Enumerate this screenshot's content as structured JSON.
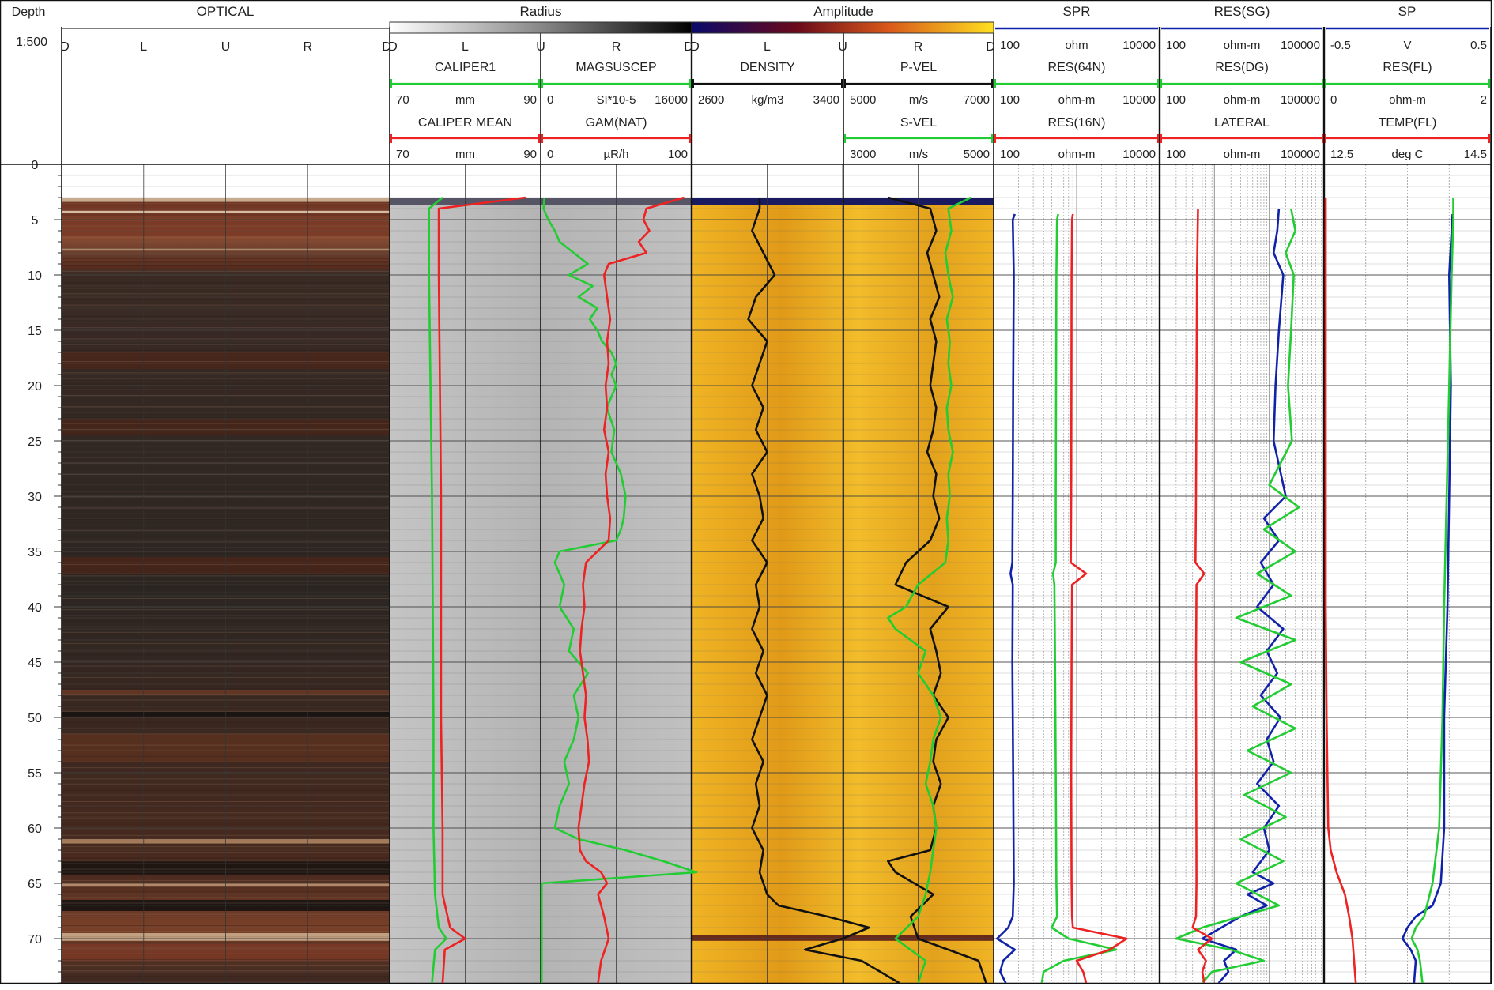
{
  "chart_data": {
    "type": "line",
    "scale_label": "1:500",
    "depth": {
      "label": "Depth",
      "range": [
        0,
        74
      ],
      "ticks": [
        "0",
        "5",
        "10",
        "15",
        "20",
        "25",
        "30",
        "35",
        "40",
        "45",
        "50",
        "55",
        "60",
        "65",
        "70"
      ]
    },
    "header": {
      "group_titles": [
        "OPTICAL",
        "Radius",
        "Amplitude",
        "SPR",
        "RES(SG)",
        "SP"
      ],
      "optical_orientation": [
        "D",
        "L",
        "U",
        "R",
        "D"
      ],
      "acoustic_orientation_radius": [
        "D",
        "L",
        "U",
        "R",
        "D"
      ],
      "acoustic_orientation_amplitude": [
        "D",
        "L",
        "U",
        "R",
        "D"
      ],
      "scales": [
        {
          "name": "SPR",
          "min": "100",
          "unit": "ohm",
          "max": "10000"
        },
        {
          "name": "RES(SG)",
          "min": "100",
          "unit": "ohm-m",
          "max": "100000"
        },
        {
          "name": "SP",
          "min": "-0.5",
          "unit": "V",
          "max": "0.5"
        },
        {
          "name": "CALIPER1",
          "min": "70",
          "unit": "mm",
          "max": "90"
        },
        {
          "name": "MAGSUSCEP",
          "min": "0",
          "unit": "SI*10-5",
          "max": "16000"
        },
        {
          "name": "DENSITY",
          "min": "2600",
          "unit": "kg/m3",
          "max": "3400"
        },
        {
          "name": "P-VEL",
          "min": "5000",
          "unit": "m/s",
          "max": "7000"
        },
        {
          "name": "RES(64N)",
          "min": "100",
          "unit": "ohm-m",
          "max": "10000"
        },
        {
          "name": "RES(DG)",
          "min": "100",
          "unit": "ohm-m",
          "max": "100000"
        },
        {
          "name": "RES(FL)",
          "min": "0",
          "unit": "ohm-m",
          "max": "2"
        },
        {
          "name": "CALIPER MEAN",
          "min": "70",
          "unit": "mm",
          "max": "90"
        },
        {
          "name": "GAM(NAT)",
          "min": "0",
          "unit": "µR/h",
          "max": "100"
        },
        {
          "name": "S-VEL",
          "min": "3000",
          "unit": "m/s",
          "max": "5000"
        },
        {
          "name": "RES(16N)",
          "min": "100",
          "unit": "ohm-m",
          "max": "10000"
        },
        {
          "name": "LATERAL",
          "min": "100",
          "unit": "ohm-m",
          "max": "100000"
        },
        {
          "name": "TEMP(FL)",
          "min": "12.5",
          "unit": "deg C",
          "max": "14.5"
        }
      ]
    },
    "curves": [
      {
        "name": "CALIPER1",
        "track": "caliper",
        "color": "#22cc33",
        "depth": [
          3,
          4,
          10,
          30,
          50,
          60,
          66,
          69,
          70,
          71,
          74
        ],
        "values": [
          77,
          75.2,
          75.2,
          75.6,
          75.8,
          75.8,
          76,
          76.5,
          77.5,
          76,
          75.6
        ]
      },
      {
        "name": "CALIPER MEAN",
        "track": "caliper",
        "color": "#ee2222",
        "depth": [
          3,
          4,
          10,
          30,
          50,
          60,
          66,
          69,
          70,
          71,
          74
        ],
        "values": [
          88,
          76.5,
          76.5,
          76.8,
          76.8,
          77,
          77,
          78,
          80,
          77.3,
          77
        ]
      },
      {
        "name": "MAGSUSCEP",
        "track": "gamma",
        "color": "#22cc33",
        "depth": [
          3,
          4,
          5,
          6,
          7,
          8,
          9,
          10,
          11,
          12,
          13,
          14,
          15,
          16,
          17,
          18,
          19,
          20,
          22,
          24,
          26,
          28,
          30,
          32,
          33,
          34,
          35,
          36,
          38,
          40,
          42,
          44,
          46,
          48,
          50,
          52,
          54,
          56,
          58,
          60,
          61,
          62,
          63,
          64,
          65,
          68,
          72,
          74
        ],
        "values": [
          400,
          300,
          800,
          1500,
          2000,
          3500,
          5000,
          3000,
          5500,
          4000,
          6000,
          5200,
          6000,
          6500,
          7500,
          8000,
          7500,
          8000,
          7000,
          7800,
          7500,
          8500,
          9000,
          8800,
          8500,
          8000,
          2000,
          1500,
          2500,
          2000,
          3500,
          3000,
          5000,
          3500,
          4000,
          3500,
          2500,
          3000,
          2000,
          1500,
          4000,
          9000,
          13000,
          16500,
          100,
          100,
          100,
          100
        ]
      },
      {
        "name": "GAM(NAT)",
        "track": "gamma",
        "color": "#ee2222",
        "depth": [
          3,
          4,
          5,
          6,
          7,
          8,
          9,
          10,
          12,
          14,
          16,
          18,
          20,
          22,
          24,
          26,
          28,
          30,
          32,
          34,
          36,
          38,
          40,
          42,
          44,
          46,
          48,
          50,
          52,
          54,
          56,
          58,
          60,
          62,
          63,
          64,
          65,
          66,
          68,
          70,
          72,
          74
        ],
        "values": [
          95,
          70,
          68,
          72,
          65,
          70,
          45,
          42,
          44,
          46,
          44,
          45,
          43,
          44,
          42,
          45,
          43,
          44,
          46,
          45,
          30,
          28,
          29,
          27,
          26,
          28,
          30,
          29,
          31,
          32,
          29,
          27,
          25,
          26,
          30,
          40,
          44,
          38,
          42,
          45,
          40,
          38
        ]
      },
      {
        "name": "DENSITY",
        "track": "velocity",
        "color": "#111111",
        "depth": [
          3,
          4,
          6,
          8,
          10,
          12,
          14,
          16,
          18,
          20,
          22,
          24,
          26,
          28,
          30,
          32,
          34,
          36,
          38,
          40,
          42,
          44,
          46,
          48,
          50,
          52,
          54,
          56,
          58,
          60,
          62,
          64,
          66,
          67,
          68,
          69,
          70,
          71,
          72,
          74
        ],
        "values": [
          2780,
          2780,
          2760,
          2790,
          2820,
          2770,
          2750,
          2800,
          2780,
          2760,
          2790,
          2770,
          2800,
          2760,
          2780,
          2790,
          2760,
          2800,
          2770,
          2780,
          2760,
          2790,
          2770,
          2800,
          2780,
          2760,
          2790,
          2770,
          2780,
          2760,
          2790,
          2780,
          2800,
          2830,
          2960,
          3070,
          3000,
          2900,
          3050,
          3150
        ]
      },
      {
        "name": "P-VEL",
        "track": "velocity",
        "color": "#111111",
        "depth": [
          3,
          4,
          6,
          8,
          10,
          12,
          14,
          16,
          18,
          20,
          22,
          24,
          26,
          28,
          30,
          32,
          34,
          36,
          38,
          40,
          42,
          44,
          46,
          48,
          50,
          52,
          54,
          56,
          58,
          60,
          62,
          63,
          64,
          66,
          68,
          70,
          71,
          72,
          74
        ],
        "values": [
          6300,
          6580,
          6620,
          6560,
          6600,
          6640,
          6580,
          6620,
          6600,
          6580,
          6620,
          6600,
          6560,
          6620,
          6600,
          6640,
          6580,
          6420,
          6350,
          6700,
          6580,
          6620,
          6650,
          6600,
          6700,
          6620,
          6600,
          6650,
          6600,
          6620,
          6580,
          6300,
          6350,
          6600,
          6450,
          6500,
          6700,
          6900,
          6950
        ]
      },
      {
        "name": "S-VEL",
        "track": "velocity",
        "color": "#22cc33",
        "depth": [
          3,
          4,
          6,
          8,
          10,
          12,
          14,
          16,
          18,
          20,
          22,
          24,
          26,
          28,
          30,
          32,
          34,
          36,
          38,
          40,
          41,
          42,
          44,
          46,
          48,
          50,
          52,
          54,
          56,
          58,
          60,
          62,
          64,
          66,
          68,
          70,
          72,
          74
        ],
        "values": [
          4850,
          4700,
          4720,
          4680,
          4700,
          4730,
          4690,
          4710,
          4700,
          4720,
          4690,
          4700,
          4730,
          4700,
          4710,
          4690,
          4700,
          4680,
          4500,
          4420,
          4300,
          4350,
          4550,
          4500,
          4600,
          4650,
          4600,
          4580,
          4550,
          4600,
          4620,
          4600,
          4580,
          4550,
          4500,
          4350,
          4550,
          4500
        ]
      },
      {
        "name": "SPR",
        "track": "normal",
        "color": "#1122aa",
        "depth": [
          4.5,
          5,
          10,
          20,
          30,
          36,
          37,
          38,
          45,
          55,
          65,
          68,
          69,
          70,
          71,
          72,
          73,
          74
        ],
        "values": [
          180,
          170,
          175,
          172,
          170,
          168,
          160,
          170,
          168,
          172,
          175,
          170,
          150,
          110,
          180,
          130,
          120,
          140
        ]
      },
      {
        "name": "RES(64N)",
        "track": "normal",
        "color": "#22cc33",
        "depth": [
          4.5,
          5,
          10,
          20,
          30,
          36,
          37,
          38,
          45,
          55,
          65,
          68,
          69,
          70,
          71,
          72,
          73,
          74
        ],
        "values": [
          600,
          580,
          570,
          565,
          560,
          560,
          520,
          540,
          550,
          560,
          570,
          580,
          500,
          800,
          3000,
          700,
          400,
          380
        ]
      },
      {
        "name": "RES(16N)",
        "track": "normal",
        "color": "#ee2222",
        "depth": [
          4.5,
          5,
          10,
          20,
          30,
          36,
          37,
          38,
          45,
          55,
          65,
          68,
          69,
          70,
          71,
          72,
          73,
          74
        ],
        "values": [
          900,
          880,
          870,
          865,
          860,
          850,
          1300,
          880,
          870,
          860,
          870,
          880,
          900,
          4000,
          2500,
          1000,
          1200,
          1300
        ]
      },
      {
        "name": "RES(SG)",
        "track": "lateral",
        "color": "#1122aa",
        "depth": [
          4,
          6,
          8,
          10,
          15,
          20,
          25,
          30,
          32,
          34,
          36,
          38,
          40,
          42,
          44,
          46,
          48,
          50,
          52,
          54,
          56,
          58,
          60,
          62,
          64,
          65,
          66,
          67,
          68,
          70,
          71,
          72,
          73,
          74
        ],
        "values": [
          15000,
          14000,
          12000,
          18000,
          15000,
          13000,
          12000,
          20000,
          8000,
          15000,
          7000,
          12000,
          6000,
          18000,
          9000,
          14000,
          7000,
          16000,
          9000,
          12000,
          6000,
          15000,
          8000,
          10000,
          5000,
          12000,
          4000,
          9000,
          3000,
          600,
          2500,
          1500,
          1800,
          1200
        ]
      },
      {
        "name": "LATERAL",
        "track": "lateral",
        "color": "#22cc33",
        "depth": [
          4,
          6,
          8,
          10,
          15,
          20,
          25,
          29,
          31,
          33,
          35,
          37,
          39,
          41,
          43,
          45,
          47,
          49,
          51,
          53,
          55,
          57,
          59,
          61,
          63,
          65,
          67,
          69,
          70,
          71,
          72,
          73,
          74
        ],
        "values": [
          25000,
          30000,
          20000,
          28000,
          25000,
          22000,
          26000,
          10000,
          35000,
          8000,
          30000,
          6000,
          25000,
          2500,
          30000,
          3000,
          25000,
          5000,
          30000,
          4000,
          25000,
          3500,
          20000,
          3000,
          18000,
          2500,
          15000,
          600,
          200,
          2000,
          8000,
          900,
          600
        ]
      },
      {
        "name": "RES(DG)",
        "track": "lateral",
        "color": "#ee2222",
        "depth": [
          4,
          10,
          20,
          30,
          36,
          37,
          38,
          45,
          55,
          65,
          68,
          69,
          70,
          71,
          72,
          73,
          74
        ],
        "values": [
          500,
          480,
          470,
          460,
          450,
          650,
          470,
          460,
          465,
          470,
          460,
          400,
          900,
          500,
          700,
          600,
          650
        ]
      },
      {
        "name": "SP",
        "track": "fluid",
        "color": "#1122aa",
        "depth": [
          4.5,
          10,
          20,
          30,
          40,
          50,
          60,
          65,
          67,
          68,
          69,
          70,
          71,
          72,
          74
        ],
        "values": [
          0.27,
          0.25,
          0.26,
          0.25,
          0.24,
          0.22,
          0.22,
          0.2,
          0.15,
          0.05,
          0,
          -0.03,
          0.02,
          0.05,
          0.04
        ]
      },
      {
        "name": "RES(FL)",
        "track": "fluid",
        "color": "#22cc33",
        "depth": [
          3,
          5,
          10,
          20,
          30,
          40,
          50,
          60,
          65,
          68,
          69,
          70,
          71,
          72,
          74
        ],
        "values": [
          1.55,
          1.55,
          1.53,
          1.5,
          1.47,
          1.44,
          1.42,
          1.38,
          1.3,
          1.2,
          1.1,
          1.05,
          1.12,
          1.15,
          1.18
        ]
      },
      {
        "name": "TEMP(FL)",
        "track": "fluid",
        "color": "#ee2222",
        "depth": [
          3,
          10,
          20,
          30,
          40,
          50,
          60,
          62,
          64,
          66,
          68,
          70,
          72,
          74
        ],
        "values": [
          12.52,
          12.52,
          12.52,
          12.52,
          12.52,
          12.53,
          12.55,
          12.58,
          12.65,
          12.75,
          12.8,
          12.84,
          12.86,
          12.88
        ]
      }
    ],
    "colors": {
      "grid": "#555555",
      "caliper_bg": "#b8b8b8",
      "amplitude_bg": "#e8a31a",
      "optical_dark": "#2b2420",
      "optical_brown": "#6b3523",
      "header_green": "#22cc33",
      "header_red": "#ee2222",
      "header_blue": "#1122aa"
    }
  }
}
